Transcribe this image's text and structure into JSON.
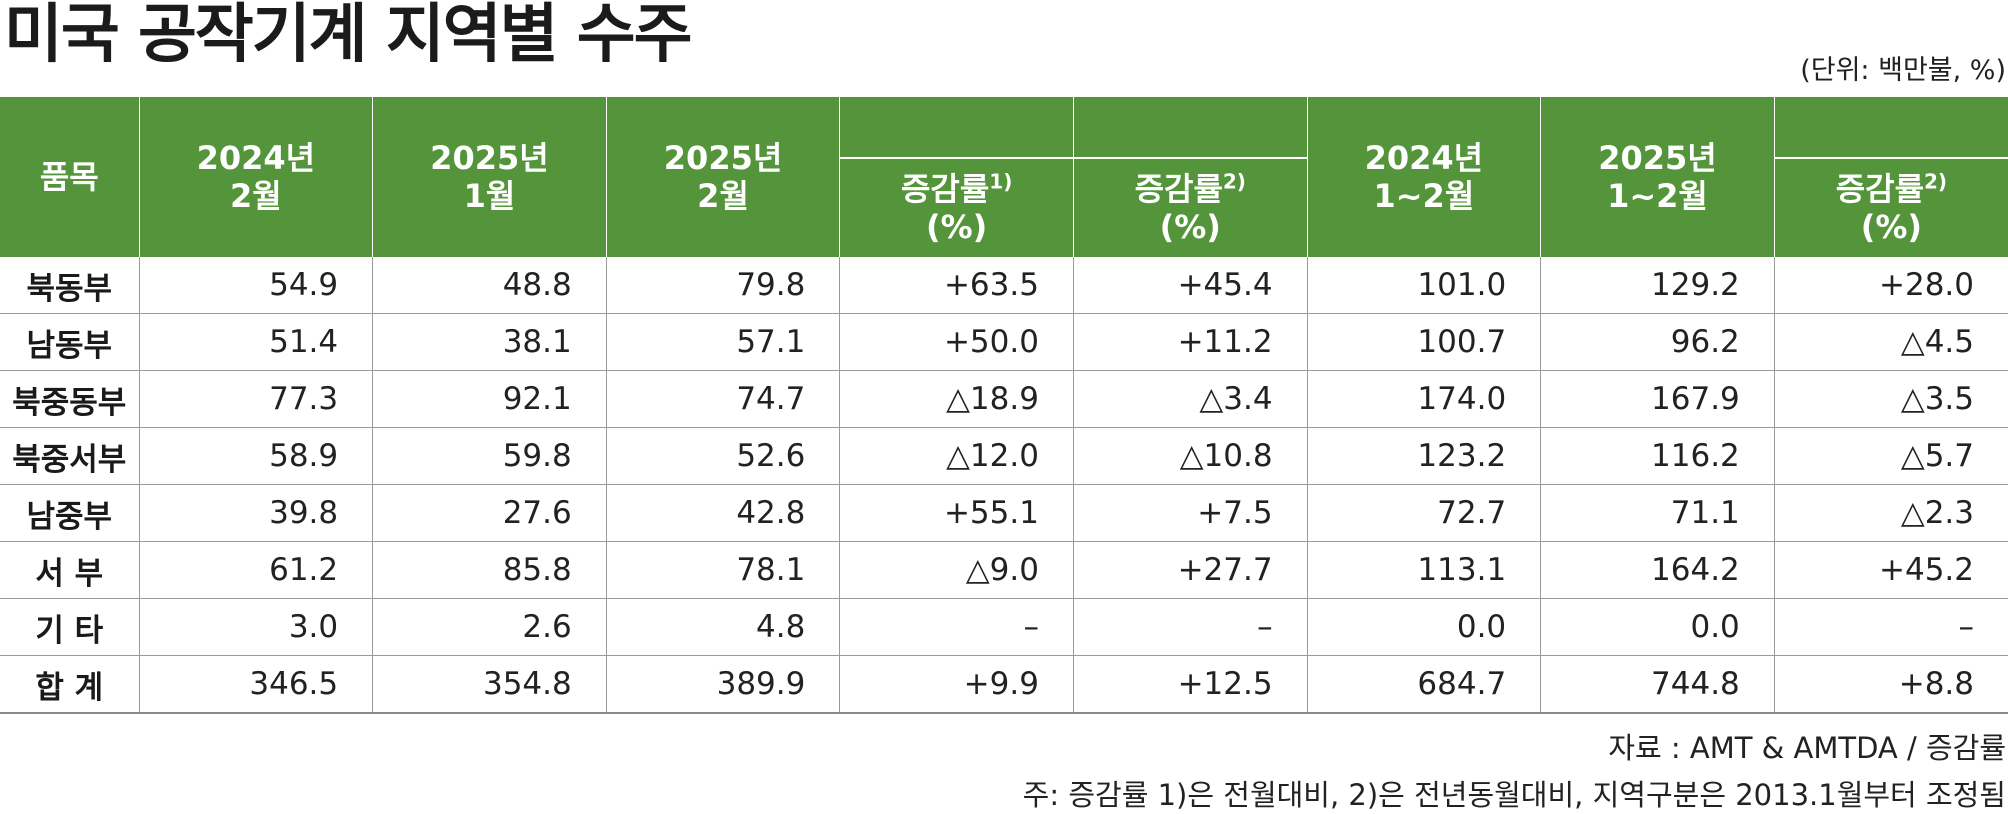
{
  "title": "미국 공작기계 지역별 수주",
  "unit": "(단위: 백만불, %)",
  "header": {
    "item": "품목",
    "col1": "2024년\n2월",
    "col2": "2025년\n1월",
    "col3": "2025년\n2월",
    "col4": "증감률",
    "col4_sup": "1)",
    "col4_unit": "(%)",
    "col5": "증감률",
    "col5_sup": "2)",
    "col5_unit": "(%)",
    "col6": "2024년\n1~2월",
    "col7": "2025년\n1~2월",
    "col8": "증감률",
    "col8_sup": "2)",
    "col8_unit": "(%)"
  },
  "rows": [
    {
      "label": "북동부",
      "v": [
        "54.9",
        "48.8",
        "79.8",
        "+63.5",
        "+45.4",
        "101.0",
        "129.2",
        "+28.0"
      ]
    },
    {
      "label": "남동부",
      "v": [
        "51.4",
        "38.1",
        "57.1",
        "+50.0",
        "+11.2",
        "100.7",
        "96.2",
        "△4.5"
      ]
    },
    {
      "label": "북중동부",
      "v": [
        "77.3",
        "92.1",
        "74.7",
        "△18.9",
        "△3.4",
        "174.0",
        "167.9",
        "△3.5"
      ]
    },
    {
      "label": "북중서부",
      "v": [
        "58.9",
        "59.8",
        "52.6",
        "△12.0",
        "△10.8",
        "123.2",
        "116.2",
        "△5.7"
      ]
    },
    {
      "label": "남중부",
      "v": [
        "39.8",
        "27.6",
        "42.8",
        "+55.1",
        "+7.5",
        "72.7",
        "71.1",
        "△2.3"
      ]
    },
    {
      "label": "서 부",
      "v": [
        "61.2",
        "85.8",
        "78.1",
        "△9.0",
        "+27.7",
        "113.1",
        "164.2",
        "+45.2"
      ]
    },
    {
      "label": "기 타",
      "v": [
        "3.0",
        "2.6",
        "4.8",
        "–",
        "–",
        "0.0",
        "0.0",
        "–"
      ]
    },
    {
      "label": "합 계",
      "v": [
        "346.5",
        "354.8",
        "389.9",
        "+9.9",
        "+12.5",
        "684.7",
        "744.8",
        "+8.8"
      ]
    }
  ],
  "footer": {
    "source": "자료 : AMT & AMTDA / 증감률",
    "note": "주: 증감률 1)은 전월대비, 2)은 전년동월대비, 지역구분은 2013.1월부터 조정됨"
  }
}
